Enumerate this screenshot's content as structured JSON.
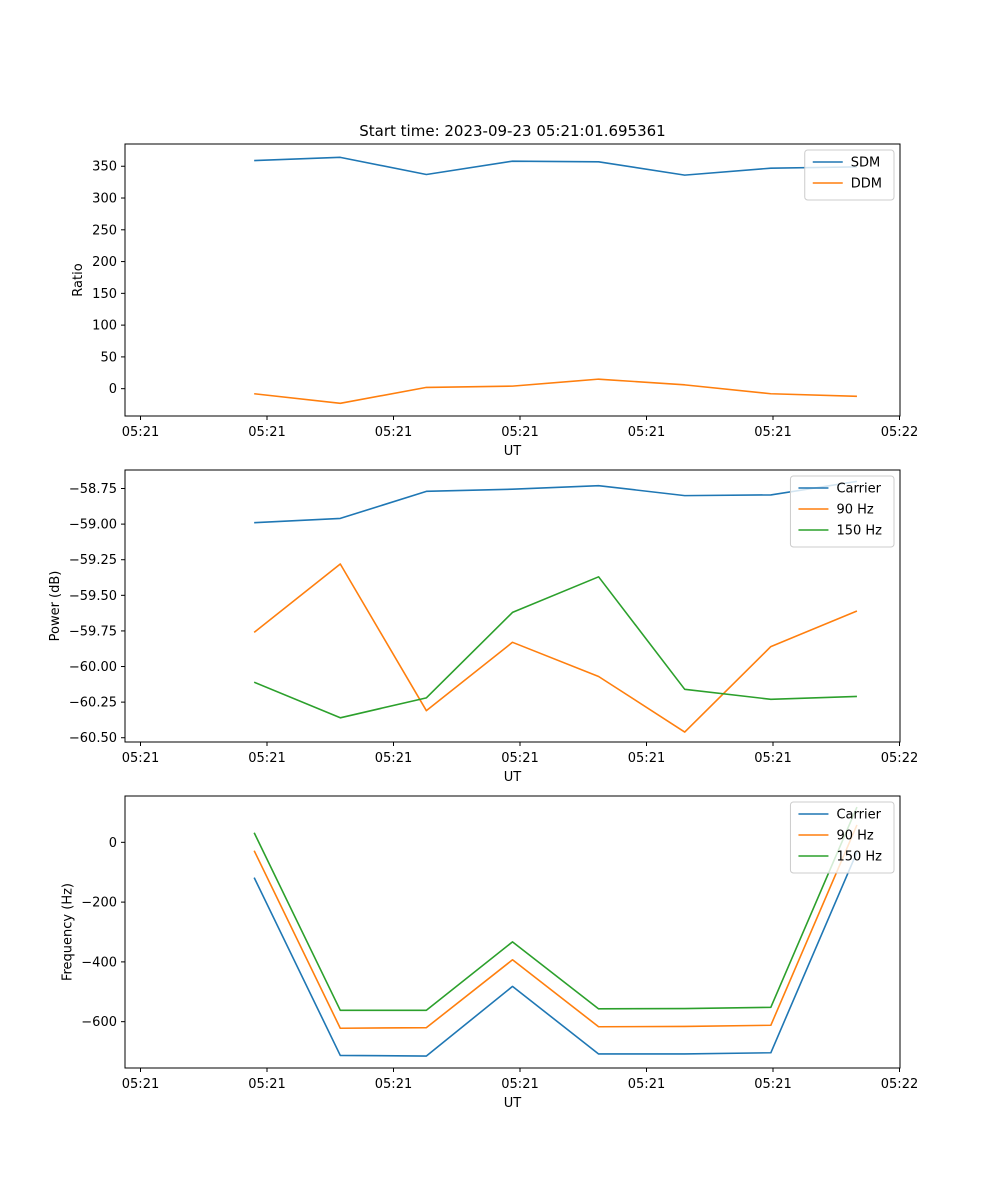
{
  "figure": {
    "title": "Start time: 2023-09-23 05:21:01.695361"
  },
  "chart_data": [
    {
      "type": "line",
      "title": "Start time: 2023-09-23 05:21:01.695361",
      "xlabel": "UT",
      "ylabel": "Ratio",
      "x_tick_labels": [
        "05:21",
        "05:21",
        "05:21",
        "05:21",
        "05:21",
        "05:21",
        "05:22"
      ],
      "y_ticks": [
        0,
        50,
        100,
        150,
        200,
        250,
        300,
        350
      ],
      "y_tick_labels": [
        "0",
        "50",
        "100",
        "150",
        "200",
        "250",
        "300",
        "350"
      ],
      "xlim": [
        -0.5,
        8.5
      ],
      "ylim": [
        -43,
        385
      ],
      "x": [
        1,
        2,
        3,
        4,
        5,
        6,
        7,
        8
      ],
      "legend_position": "top-right",
      "series": [
        {
          "name": "SDM",
          "color": "#1f77b4",
          "values": [
            359,
            364,
            337,
            358,
            357,
            336,
            347,
            349
          ]
        },
        {
          "name": "DDM",
          "color": "#ff7f0e",
          "values": [
            -8,
            -23,
            2,
            4,
            15,
            6,
            -8,
            -12
          ]
        }
      ]
    },
    {
      "type": "line",
      "title": "",
      "xlabel": "UT",
      "ylabel": "Power (dB)",
      "x_tick_labels": [
        "05:21",
        "05:21",
        "05:21",
        "05:21",
        "05:21",
        "05:21",
        "05:22"
      ],
      "y_ticks": [
        -60.5,
        -60.25,
        -60.0,
        -59.75,
        -59.5,
        -59.25,
        -59.0,
        -58.75
      ],
      "y_tick_labels": [
        "−60.50",
        "−60.25",
        "−60.00",
        "−59.75",
        "−59.50",
        "−59.25",
        "−59.00",
        "−58.75"
      ],
      "xlim": [
        -0.5,
        8.5
      ],
      "ylim": [
        -60.53,
        -58.62
      ],
      "x": [
        1,
        2,
        3,
        4,
        5,
        6,
        7,
        8
      ],
      "legend_position": "top-right",
      "series": [
        {
          "name": "Carrier",
          "color": "#1f77b4",
          "values": [
            -58.99,
            -58.96,
            -58.77,
            -58.755,
            -58.73,
            -58.8,
            -58.795,
            -58.7
          ]
        },
        {
          "name": "90 Hz",
          "color": "#ff7f0e",
          "values": [
            -59.76,
            -59.28,
            -60.31,
            -59.83,
            -60.07,
            -60.46,
            -59.86,
            -59.61
          ]
        },
        {
          "name": "150 Hz",
          "color": "#2ca02c",
          "values": [
            -60.11,
            -60.36,
            -60.22,
            -59.62,
            -59.37,
            -60.16,
            -60.23,
            -60.21
          ]
        }
      ]
    },
    {
      "type": "line",
      "title": "",
      "xlabel": "UT",
      "ylabel": "Frequency (Hz)",
      "x_tick_labels": [
        "05:21",
        "05:21",
        "05:21",
        "05:21",
        "05:21",
        "05:21",
        "05:22"
      ],
      "y_ticks": [
        -600,
        -400,
        -200,
        0
      ],
      "y_tick_labels": [
        "−600",
        "−400",
        "−200",
        "0"
      ],
      "xlim": [
        -0.5,
        8.5
      ],
      "ylim": [
        -755,
        155
      ],
      "x": [
        1,
        2,
        3,
        4,
        5,
        6,
        7,
        8
      ],
      "legend_position": "top-right",
      "series": [
        {
          "name": "Carrier",
          "color": "#1f77b4",
          "values": [
            -118,
            -713,
            -715,
            -482,
            -708,
            -708,
            -704,
            -33
          ]
        },
        {
          "name": "90 Hz",
          "color": "#ff7f0e",
          "values": [
            -28,
            -622,
            -620,
            -393,
            -617,
            -616,
            -612,
            58
          ]
        },
        {
          "name": "150 Hz",
          "color": "#2ca02c",
          "values": [
            32,
            -562,
            -562,
            -333,
            -557,
            -556,
            -552,
            118
          ]
        }
      ]
    }
  ]
}
